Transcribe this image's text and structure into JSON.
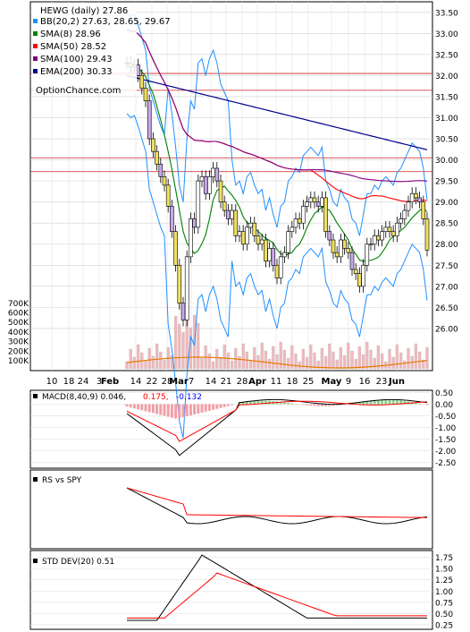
{
  "chart_data": {
    "type": "line",
    "symbol_title": "HEWG (daily) 27.86",
    "watermark": "OptionChance.com",
    "price_panel": {
      "legend": [
        {
          "label": "BB(20,2) 27.63, 28.65, 29.67",
          "color": "#1e90ff"
        },
        {
          "label": "SMA(8) 28.96",
          "color": "#008000"
        },
        {
          "label": "SMA(50) 28.52",
          "color": "#ff0000"
        },
        {
          "label": "SMA(100) 29.43",
          "color": "#800080"
        },
        {
          "label": "EMA(200) 30.33",
          "color": "#00008b"
        }
      ],
      "ylim": [
        25.0,
        33.75
      ],
      "y_ticks": [
        26.0,
        26.5,
        27.0,
        27.5,
        28.0,
        28.5,
        29.0,
        29.5,
        30.0,
        30.5,
        31.0,
        31.5,
        32.0,
        32.5,
        33.0,
        33.5
      ],
      "y_tick_labels": [
        "26.00",
        "26.50",
        "27.00",
        "27.50",
        "28.00",
        "28.50",
        "29.00",
        "29.50",
        "30.00",
        "30.50",
        "31.00",
        "31.50",
        "32.00",
        "32.50",
        "33.00",
        "33.50"
      ],
      "resistance_lines": [
        32.05,
        31.65,
        30.05,
        29.72
      ],
      "price_close": [
        [
          "Feb 10",
          32.3
        ],
        [
          "Feb 11",
          32.2
        ],
        [
          "Feb 12",
          32.25
        ],
        [
          "Feb 13",
          32.0
        ],
        [
          "Feb 14",
          31.7
        ],
        [
          "Feb 18",
          31.4
        ],
        [
          "Feb 19",
          30.5
        ],
        [
          "Feb 20",
          30.2
        ],
        [
          "Feb 21",
          29.9
        ],
        [
          "Feb 24",
          29.6
        ],
        [
          "Feb 25",
          29.4
        ],
        [
          "Feb 26",
          28.9
        ],
        [
          "Feb 27",
          28.3
        ],
        [
          "Feb 28",
          27.5
        ],
        [
          "Mar 3",
          26.6
        ],
        [
          "Mar 4",
          26.2
        ],
        [
          "Mar 5",
          27.7
        ],
        [
          "Mar 6",
          28.6
        ],
        [
          "Mar 7",
          28.4
        ],
        [
          "Mar 10",
          29.5
        ],
        [
          "Mar 11",
          29.6
        ],
        [
          "Mar 12",
          29.2
        ],
        [
          "Mar 13",
          29.6
        ],
        [
          "Mar 14",
          29.8
        ],
        [
          "Mar 17",
          29.5
        ],
        [
          "Mar 18",
          29.0
        ],
        [
          "Mar 19",
          28.8
        ],
        [
          "Mar 20",
          28.6
        ],
        [
          "Mar 21",
          28.8
        ],
        [
          "Mar 24",
          28.2
        ],
        [
          "Mar 25",
          28.3
        ],
        [
          "Mar 26",
          28.0
        ],
        [
          "Mar 27",
          28.4
        ],
        [
          "Mar 28",
          28.5
        ],
        [
          "Mar 31",
          28.2
        ],
        [
          "Apr 1",
          28.0
        ],
        [
          "Apr 2",
          28.1
        ],
        [
          "Apr 3",
          27.6
        ],
        [
          "Apr 4",
          27.9
        ],
        [
          "Apr 7",
          27.5
        ],
        [
          "Apr 8",
          27.2
        ],
        [
          "Apr 9",
          27.7
        ],
        [
          "Apr 10",
          27.8
        ],
        [
          "Apr 11",
          28.3
        ],
        [
          "Apr 14",
          28.4
        ],
        [
          "Apr 15",
          28.6
        ],
        [
          "Apr 16",
          28.5
        ],
        [
          "Apr 17",
          28.9
        ],
        [
          "Apr 18",
          29.0
        ],
        [
          "Apr 21",
          29.1
        ],
        [
          "Apr 22",
          29.0
        ],
        [
          "Apr 23",
          28.9
        ],
        [
          "Apr 24",
          29.1
        ],
        [
          "Apr 25",
          28.3
        ],
        [
          "Apr 28",
          28.1
        ],
        [
          "Apr 29",
          27.8
        ],
        [
          "Apr 30",
          27.7
        ],
        [
          "May 1",
          28.1
        ],
        [
          "May 2",
          27.9
        ],
        [
          "May 5",
          27.8
        ],
        [
          "May 6",
          27.4
        ],
        [
          "May 7",
          27.3
        ],
        [
          "May 8",
          27.0
        ],
        [
          "May 9",
          27.5
        ],
        [
          "May 12",
          28.0
        ],
        [
          "May 13",
          28.0
        ],
        [
          "May 14",
          28.2
        ],
        [
          "May 15",
          28.1
        ],
        [
          "May 16",
          28.3
        ],
        [
          "May 19",
          28.4
        ],
        [
          "May 20",
          28.3
        ],
        [
          "May 21",
          28.2
        ],
        [
          "May 22",
          28.5
        ],
        [
          "May 23",
          28.6
        ],
        [
          "May 27",
          28.8
        ],
        [
          "May 28",
          29.0
        ],
        [
          "May 29",
          29.2
        ],
        [
          "May 30",
          29.1
        ],
        [
          "Jun 2",
          29.0
        ],
        [
          "Jun 3",
          28.6
        ],
        [
          "Jun 4",
          27.86
        ]
      ],
      "volume_ticks": [
        "100K",
        "200K",
        "300K",
        "400K",
        "500K",
        "600K",
        "700K"
      ]
    },
    "x_axis_labels": [
      "10",
      "18",
      "24",
      "3",
      "Feb",
      "14",
      "22",
      "28",
      "Mar",
      "7",
      "14",
      "21",
      "28",
      "Apr",
      "11",
      "18",
      "25",
      "May",
      "9",
      "16",
      "23",
      "Jun"
    ],
    "macd_panel": {
      "label": "MACD(8,40,9) 0.046,",
      "value_red": "0.175,",
      "value_blue": "-0.132",
      "ylim": [
        -2.75,
        0.6
      ],
      "y_ticks": [
        0.5,
        0.0,
        -0.5,
        -1.0,
        -1.5,
        -2.0,
        -2.5
      ],
      "y_tick_labels": [
        "0.50",
        "0.00",
        "-0.50",
        "-1.00",
        "-1.50",
        "-2.00",
        "-2.50"
      ]
    },
    "rs_panel": {
      "label": "RS vs SPY"
    },
    "std_panel": {
      "label": "STD DEV(20) 0.51",
      "ylim": [
        0.15,
        1.9
      ],
      "y_ticks": [
        0.25,
        0.5,
        0.75,
        1.0,
        1.25,
        1.5,
        1.75
      ],
      "y_tick_labels": [
        "0.25",
        "0.50",
        "0.75",
        "1.00",
        "1.25",
        "1.50",
        "1.75"
      ]
    }
  }
}
